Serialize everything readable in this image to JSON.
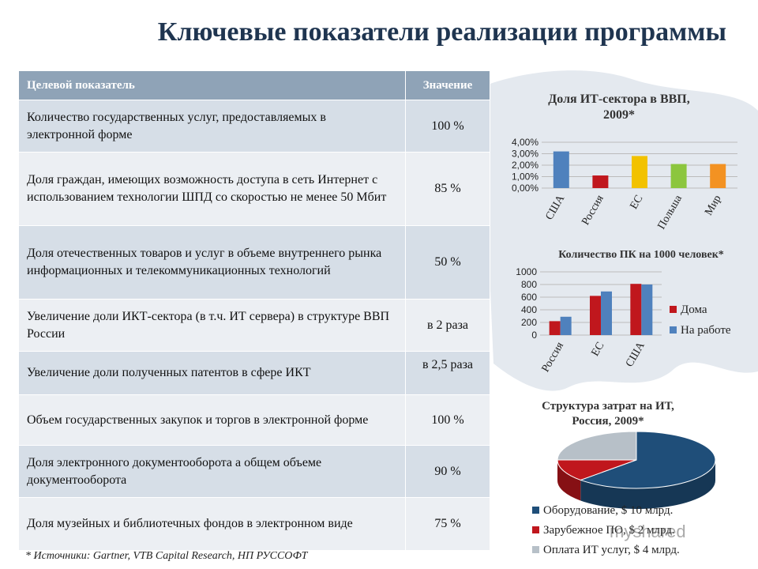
{
  "title": "Ключевые показатели реализации программы",
  "table": {
    "headers": [
      "Целевой показатель",
      "Значение"
    ],
    "rows": [
      {
        "indicator": "Количество государственных услуг, предоставляемых в электронной форме",
        "value": "100 %"
      },
      {
        "indicator": "Доля граждан, имеющих возможность доступа в сеть Интернет с использованием технологии ШПД со скоростью не менее 50 Мбит",
        "value": "85 %"
      },
      {
        "indicator": "Доля отечественных товаров и услуг в объеме внутреннего рынка информационных и телекоммуникационных технологий",
        "value": "50 %"
      },
      {
        "indicator": "Увеличение доли ИКТ-сектора (в т.ч. ИТ сервера) в структуре ВВП России",
        "value": "в 2 раза"
      },
      {
        "indicator": "Увеличение доли полученных патентов в сфере ИКТ",
        "value": "в 2,5 раза"
      },
      {
        "indicator": "Объем государственных закупок и торгов в электронной форме",
        "value": "100 %"
      },
      {
        "indicator": "Доля электронного документооборота а общем объеме документооборота",
        "value": "90 %"
      },
      {
        "indicator": "Доля музейных и библиотечных фондов в электронном виде",
        "value": "75 %"
      }
    ]
  },
  "footnote": "* Источники: Gartner, VTB Capital Research, НП РУССОФТ",
  "watermark": "myshared",
  "chart_data": [
    {
      "type": "bar",
      "title": "Доля ИТ-сектора в ВВП, 2009*",
      "categories": [
        "США",
        "Россия",
        "ЕС",
        "Польша",
        "Мир"
      ],
      "values": [
        3.2,
        1.1,
        2.8,
        2.1,
        2.1
      ],
      "colors": [
        "#4f81bd",
        "#c0171d",
        "#f2c200",
        "#8cc63e",
        "#f39222"
      ],
      "yticks": [
        "0,00%",
        "1,00%",
        "2,00%",
        "3,00%",
        "4,00%"
      ],
      "ylim": [
        0,
        4
      ],
      "grid": true
    },
    {
      "type": "bar",
      "title": "Количество ПК на 1000 человек*",
      "categories": [
        "Россия",
        "ЕС",
        "США"
      ],
      "series": [
        {
          "name": "Дома",
          "values": [
            220,
            620,
            810
          ],
          "color": "#c0171d"
        },
        {
          "name": "На работе",
          "values": [
            290,
            690,
            800
          ],
          "color": "#4f81bd"
        }
      ],
      "yticks": [
        "0",
        "200",
        "400",
        "600",
        "800",
        "1000"
      ],
      "ylim": [
        0,
        1000
      ],
      "legend": "right",
      "grid": true
    },
    {
      "type": "pie",
      "title": "Структура затрат на ИТ, Россия, 2009*",
      "slices": [
        {
          "label": "Оборудование, $ 10 млрд.",
          "value": 10,
          "color": "#1f4e79"
        },
        {
          "label": "Зарубежное ПО, $ 2 млрд.",
          "value": 2,
          "color": "#c0171d"
        },
        {
          "label": "Оплата ИТ услуг, $ 4 млрд.",
          "value": 4,
          "color": "#b7c0c8"
        }
      ],
      "legend": "bottom"
    }
  ]
}
